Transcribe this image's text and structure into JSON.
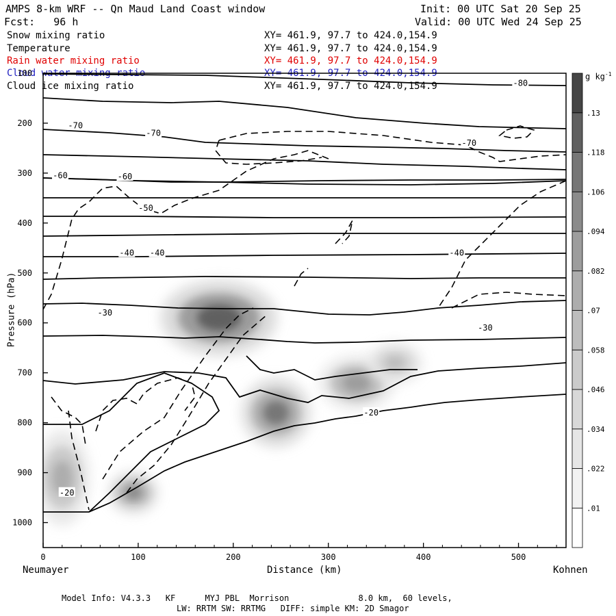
{
  "header": {
    "title": "AMPS 8-km WRF -- Qn Maud Land Coast window",
    "fcst": "Fcst:   96 h",
    "init": "Init: 00 UTC Sat 20 Sep 25",
    "valid": "Valid: 00 UTC Wed 24 Sep 25"
  },
  "fields": [
    {
      "name": "Snow mixing ratio",
      "xy": "XY= 461.9, 97.7 to 424.0,154.9",
      "color": "#000000"
    },
    {
      "name": "Temperature",
      "xy": "XY= 461.9, 97.7 to 424.0,154.9",
      "color": "#000000"
    },
    {
      "name": "Rain water mixing ratio",
      "xy": "XY= 461.9, 97.7 to 424.0,154.9",
      "color": "#e00000"
    },
    {
      "name": "Cloud water mixing ratio",
      "xy": "XY= 461.9, 97.7 to 424.0,154.9",
      "color": "#2020c0"
    },
    {
      "name": "Cloud ice mixing ratio",
      "xy": "XY= 461.9, 97.7 to 424.0,154.9",
      "color": "#000000"
    }
  ],
  "footer": {
    "line1": "Model Info: V4.3.3   KF      MYJ PBL  Morrison              8.0 km,  60 levels,",
    "line2": "LW: RRTM SW: RRTMG   DIFF: simple KM: 2D Smagor"
  },
  "chart_data": {
    "type": "heatmap",
    "title": "AMPS 8-km WRF -- Qn Maud Land Coast window",
    "xlabel": "Distance (km)",
    "ylabel": "Pressure (hPa)",
    "x_left_label": "Neumayer",
    "x_right_label": "Kohnen",
    "xlim": [
      0,
      550
    ],
    "ylim": [
      1050,
      100
    ],
    "xticks": [
      0,
      100,
      200,
      300,
      400,
      500
    ],
    "yticks": [
      100,
      200,
      300,
      400,
      500,
      600,
      700,
      800,
      900,
      1000
    ],
    "colorbar": {
      "unit": "g kg",
      "unit_exp": "-1",
      "levels": [
        0.01,
        0.022,
        0.034,
        0.046,
        0.058,
        0.07,
        0.082,
        0.094,
        0.106,
        0.118,
        0.13
      ],
      "labels": [
        ".01",
        ".022",
        ".034",
        ".046",
        ".058",
        ".07",
        ".082",
        ".094",
        ".106",
        ".118",
        ".13"
      ],
      "colors": [
        "#ffffff",
        "#f2f2f2",
        "#e6e6e6",
        "#d8d8d8",
        "#cbcbcb",
        "#bdbdbd",
        "#adadad",
        "#9d9d9d",
        "#8b8b8b",
        "#777777",
        "#606060",
        "#454545"
      ]
    },
    "temperature_labels": [
      {
        "x": 25,
        "p": 940,
        "label": "-20"
      },
      {
        "x": 345,
        "p": 780,
        "label": "-20"
      },
      {
        "x": 65,
        "p": 580,
        "label": "-30"
      },
      {
        "x": 465,
        "p": 610,
        "label": "-30"
      },
      {
        "x": 88,
        "p": 460,
        "label": "-40"
      },
      {
        "x": 120,
        "p": 460,
        "label": "-40"
      },
      {
        "x": 435,
        "p": 460,
        "label": "-40"
      },
      {
        "x": 108,
        "p": 370,
        "label": "-50"
      },
      {
        "x": 18,
        "p": 305,
        "label": "-60"
      },
      {
        "x": 86,
        "p": 307,
        "label": "-60"
      },
      {
        "x": 34,
        "p": 205,
        "label": "-70"
      },
      {
        "x": 116,
        "p": 220,
        "label": "-70"
      },
      {
        "x": 448,
        "p": 240,
        "label": "-70"
      },
      {
        "x": 502,
        "p": 120,
        "label": "-80"
      }
    ],
    "snow_maxima": [
      {
        "x": 185,
        "p": 590,
        "value": 0.13
      },
      {
        "x": 245,
        "p": 780,
        "value": 0.11
      },
      {
        "x": 330,
        "p": 720,
        "value": 0.09
      },
      {
        "x": 370,
        "p": 680,
        "value": 0.07
      },
      {
        "x": 20,
        "p": 910,
        "value": 0.08
      },
      {
        "x": 95,
        "p": 940,
        "value": 0.1
      }
    ]
  }
}
